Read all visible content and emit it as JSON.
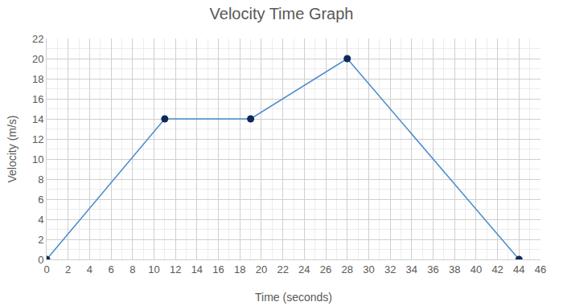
{
  "chart_data": {
    "type": "line",
    "title": "Velocity Time Graph",
    "x_label": "Time (seconds)",
    "y_label": "Velocity (m/s)",
    "x": [
      0,
      11,
      19,
      28,
      44
    ],
    "values": [
      0,
      14,
      14,
      20,
      0
    ],
    "color": "#4a8ccb",
    "marker": "circle",
    "line_style": "solid",
    "xlim": [
      0,
      46
    ],
    "xticks": [
      0,
      2,
      4,
      6,
      8,
      10,
      12,
      14,
      16,
      18,
      20,
      22,
      24,
      26,
      28,
      30,
      32,
      34,
      36,
      38,
      40,
      42,
      44,
      46
    ],
    "ylim": [
      0,
      22
    ],
    "yticks": [
      0,
      2,
      4,
      6,
      8,
      10,
      12,
      14,
      16,
      18,
      20,
      22
    ],
    "grid": true
  }
}
